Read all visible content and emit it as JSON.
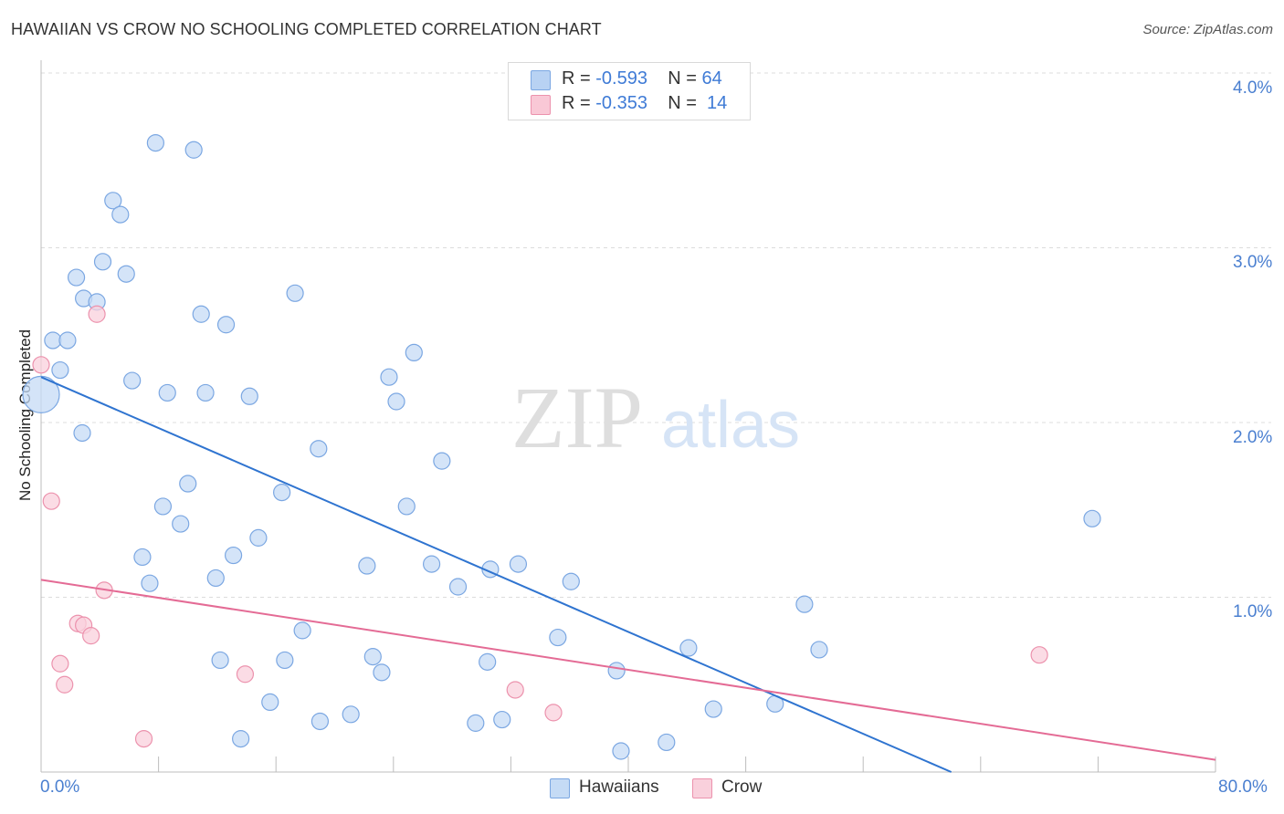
{
  "header": {
    "title": "HAWAIIAN VS CROW NO SCHOOLING COMPLETED CORRELATION CHART",
    "source": "Source: ZipAtlas.com"
  },
  "legend_top": {
    "rows": [
      {
        "r_label": "R =",
        "r_value": "-0.593",
        "n_label": "N =",
        "n_value": "64",
        "color": "#b8d2f3",
        "border": "#7ba7e2"
      },
      {
        "r_label": "R =",
        "r_value": "-0.353",
        "n_label": "N =",
        "n_value": "14",
        "color": "#f9c8d6",
        "border": "#ec92ad"
      }
    ]
  },
  "watermark": {
    "zip": "ZIP",
    "atlas": "atlas"
  },
  "chart_data": {
    "type": "scatter",
    "title": "HAWAIIAN VS CROW NO SCHOOLING COMPLETED CORRELATION CHART",
    "xlabel": "",
    "ylabel": "No Schooling Completed",
    "xlim": [
      0,
      80
    ],
    "ylim": [
      0,
      4.2
    ],
    "x_tick_labels": [
      "0.0%",
      "80.0%"
    ],
    "y_ticks": [
      1.0,
      2.0,
      3.0,
      4.0
    ],
    "y_tick_labels": [
      "1.0%",
      "2.0%",
      "3.0%",
      "4.0%"
    ],
    "grid": true,
    "legend_position": "bottom",
    "series": [
      {
        "name": "Hawaiians",
        "color": "#7ba7e2",
        "fill": "#c5dbf5",
        "points": [
          [
            0.0,
            2.16
          ],
          [
            0.8,
            2.47
          ],
          [
            1.8,
            2.47
          ],
          [
            1.3,
            2.3
          ],
          [
            2.4,
            2.83
          ],
          [
            2.9,
            2.71
          ],
          [
            3.8,
            2.69
          ],
          [
            4.2,
            2.92
          ],
          [
            4.9,
            3.27
          ],
          [
            5.4,
            3.19
          ],
          [
            5.8,
            2.85
          ],
          [
            7.8,
            3.6
          ],
          [
            10.4,
            3.56
          ],
          [
            2.8,
            1.94
          ],
          [
            6.2,
            2.24
          ],
          [
            8.6,
            2.17
          ],
          [
            10.9,
            2.62
          ],
          [
            11.2,
            2.17
          ],
          [
            12.6,
            2.56
          ],
          [
            14.2,
            2.15
          ],
          [
            17.3,
            2.74
          ],
          [
            18.9,
            1.85
          ],
          [
            23.7,
            2.26
          ],
          [
            24.2,
            2.12
          ],
          [
            25.4,
            2.4
          ],
          [
            8.3,
            1.52
          ],
          [
            9.5,
            1.42
          ],
          [
            10.0,
            1.65
          ],
          [
            6.9,
            1.23
          ],
          [
            7.4,
            1.08
          ],
          [
            11.9,
            1.11
          ],
          [
            13.1,
            1.24
          ],
          [
            14.8,
            1.34
          ],
          [
            16.4,
            1.6
          ],
          [
            24.9,
            1.52
          ],
          [
            27.3,
            1.78
          ],
          [
            22.2,
            1.18
          ],
          [
            26.6,
            1.19
          ],
          [
            28.4,
            1.06
          ],
          [
            30.6,
            1.16
          ],
          [
            32.5,
            1.19
          ],
          [
            36.1,
            1.09
          ],
          [
            12.2,
            0.64
          ],
          [
            15.6,
            0.4
          ],
          [
            16.6,
            0.64
          ],
          [
            17.8,
            0.81
          ],
          [
            19.0,
            0.29
          ],
          [
            21.1,
            0.33
          ],
          [
            22.6,
            0.66
          ],
          [
            23.2,
            0.57
          ],
          [
            29.6,
            0.28
          ],
          [
            30.4,
            0.63
          ],
          [
            31.4,
            0.3
          ],
          [
            35.2,
            0.77
          ],
          [
            39.2,
            0.58
          ],
          [
            39.5,
            0.12
          ],
          [
            42.6,
            0.17
          ],
          [
            44.1,
            0.71
          ],
          [
            45.8,
            0.36
          ],
          [
            50.0,
            0.39
          ],
          [
            52.0,
            0.96
          ],
          [
            53.0,
            0.7
          ],
          [
            71.6,
            1.45
          ],
          [
            13.6,
            0.19
          ]
        ]
      },
      {
        "name": "Crow",
        "color": "#ec92ad",
        "fill": "#f9d0dc",
        "points": [
          [
            0.0,
            2.33
          ],
          [
            3.8,
            2.62
          ],
          [
            0.7,
            1.55
          ],
          [
            4.3,
            1.04
          ],
          [
            2.5,
            0.85
          ],
          [
            2.9,
            0.84
          ],
          [
            3.4,
            0.78
          ],
          [
            1.3,
            0.62
          ],
          [
            1.6,
            0.5
          ],
          [
            7.0,
            0.19
          ],
          [
            13.9,
            0.56
          ],
          [
            32.3,
            0.47
          ],
          [
            34.9,
            0.34
          ],
          [
            68.0,
            0.67
          ]
        ]
      }
    ],
    "trend_lines": [
      {
        "series": "Hawaiians",
        "color": "#2f74d0",
        "x": [
          0,
          62
        ],
        "y": [
          2.26,
          0.0
        ]
      },
      {
        "series": "Crow",
        "color": "#e46b95",
        "x": [
          0,
          80
        ],
        "y": [
          1.1,
          0.07
        ]
      }
    ]
  },
  "legend_bottom": {
    "items": [
      {
        "label": "Hawaiians",
        "color": "#c5dbf5",
        "border": "#7ba7e2"
      },
      {
        "label": "Crow",
        "color": "#f9d0dc",
        "border": "#ec92ad"
      }
    ]
  }
}
